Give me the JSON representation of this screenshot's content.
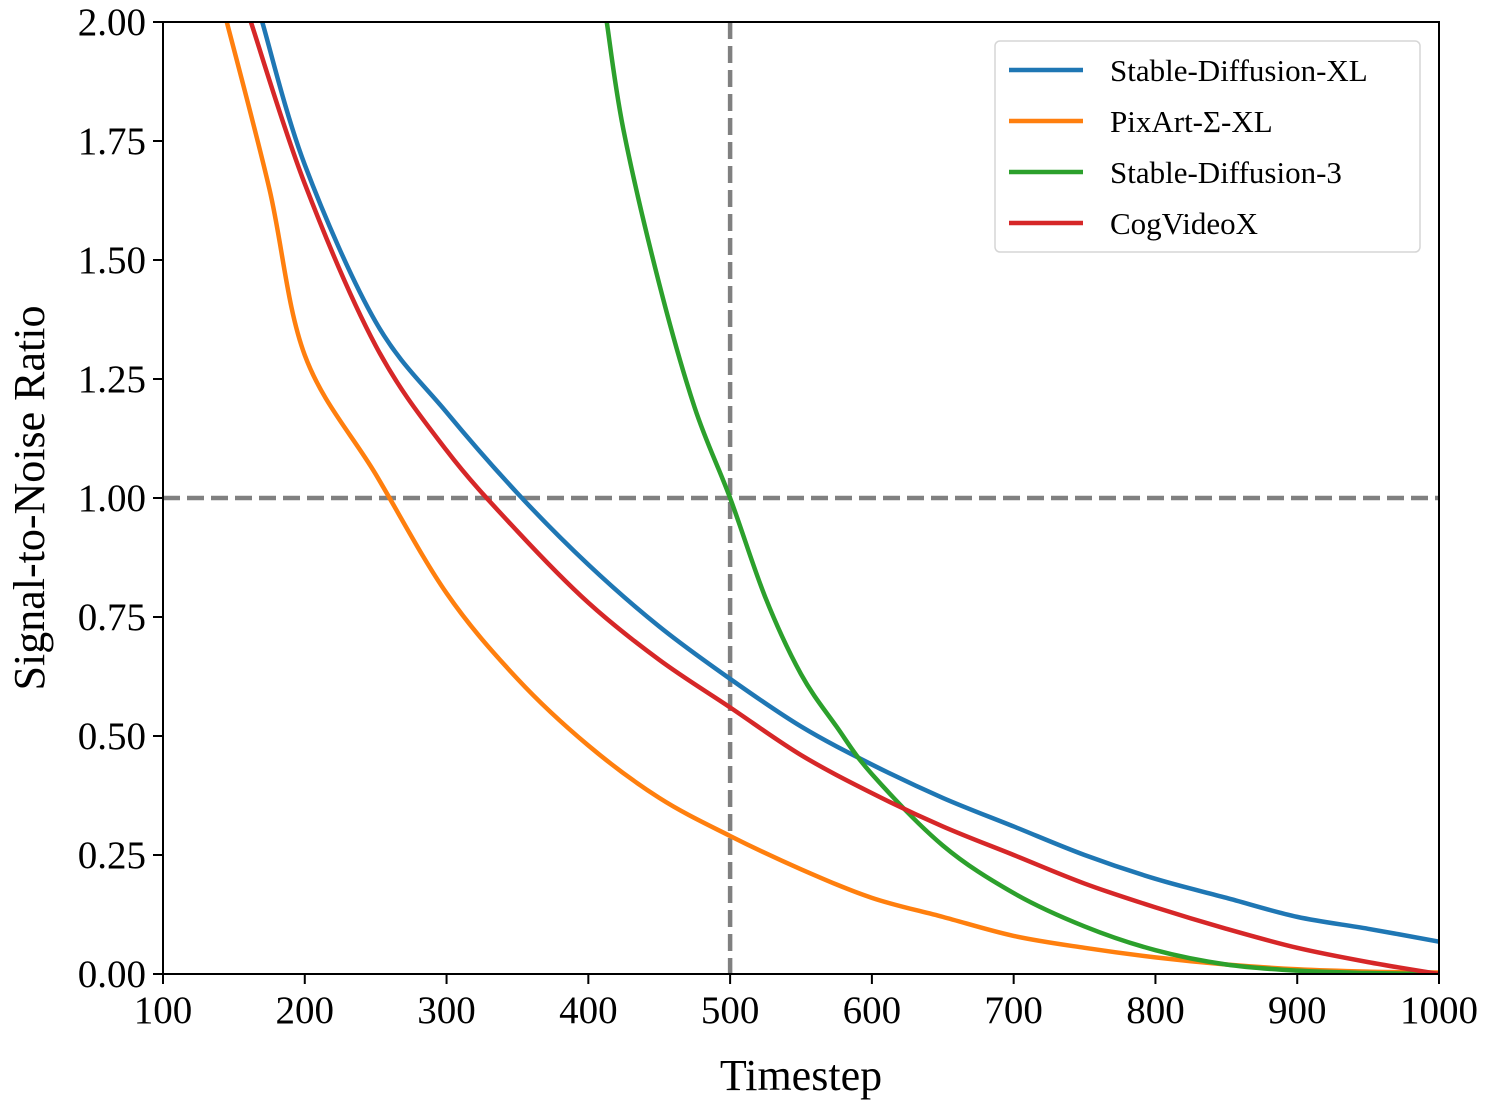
{
  "chart_data": {
    "type": "line",
    "title": "",
    "xlabel": "Timestep",
    "ylabel": "Signal-to-Noise Ratio",
    "xlim": [
      100,
      1000
    ],
    "ylim": [
      0,
      2
    ],
    "xticks": [
      100,
      200,
      300,
      400,
      500,
      600,
      700,
      800,
      900,
      1000
    ],
    "xtick_labels": [
      "100",
      "200",
      "300",
      "400",
      "500",
      "600",
      "700",
      "800",
      "900",
      "1000"
    ],
    "yticks": [
      0,
      0.25,
      0.5,
      0.75,
      1.0,
      1.25,
      1.5,
      1.75,
      2.0
    ],
    "ytick_labels": [
      "0.00",
      "0.25",
      "0.50",
      "0.75",
      "1.00",
      "1.25",
      "1.50",
      "1.75",
      "2.00"
    ],
    "grid": false,
    "legend_position": "top-right",
    "reference_lines": [
      {
        "orientation": "horizontal",
        "value": 1.0,
        "style": "dashed",
        "color": "#808080"
      },
      {
        "orientation": "vertical",
        "value": 500,
        "style": "dashed",
        "color": "#808080"
      }
    ],
    "series": [
      {
        "name": "Stable-Diffusion-XL",
        "color": "#1f77b4",
        "x": [
          170,
          200,
          250,
          300,
          350,
          400,
          450,
          500,
          550,
          600,
          650,
          700,
          750,
          800,
          850,
          900,
          950,
          1000
        ],
        "y": [
          2.0,
          1.7,
          1.37,
          1.18,
          1.01,
          0.86,
          0.73,
          0.62,
          0.52,
          0.44,
          0.37,
          0.31,
          0.25,
          0.2,
          0.16,
          0.12,
          0.095,
          0.068
        ]
      },
      {
        "name": "PixArt-Σ-XL",
        "color": "#ff7f0e",
        "x": [
          145,
          175,
          200,
          250,
          300,
          350,
          400,
          450,
          500,
          550,
          600,
          650,
          700,
          750,
          800,
          850,
          900,
          950,
          1000
        ],
        "y": [
          2.0,
          1.65,
          1.3,
          1.05,
          0.8,
          0.62,
          0.48,
          0.37,
          0.29,
          0.22,
          0.16,
          0.12,
          0.08,
          0.055,
          0.035,
          0.02,
          0.01,
          0.005,
          0.003
        ]
      },
      {
        "name": "Stable-Diffusion-3",
        "color": "#2ca02c",
        "x": [
          413,
          425,
          450,
          475,
          500,
          525,
          550,
          575,
          600,
          650,
          700,
          750,
          800,
          850,
          900,
          950,
          1000
        ],
        "y": [
          2.0,
          1.77,
          1.45,
          1.19,
          1.0,
          0.79,
          0.63,
          0.52,
          0.42,
          0.27,
          0.17,
          0.1,
          0.05,
          0.02,
          0.007,
          0.002,
          0.0
        ]
      },
      {
        "name": "CogVideoX",
        "color": "#d62728",
        "x": [
          162,
          200,
          250,
          300,
          350,
          400,
          450,
          500,
          550,
          600,
          650,
          700,
          750,
          800,
          850,
          900,
          950,
          1000
        ],
        "y": [
          2.0,
          1.66,
          1.32,
          1.1,
          0.93,
          0.78,
          0.66,
          0.56,
          0.46,
          0.38,
          0.31,
          0.25,
          0.19,
          0.14,
          0.095,
          0.055,
          0.025,
          0.0
        ]
      }
    ]
  }
}
